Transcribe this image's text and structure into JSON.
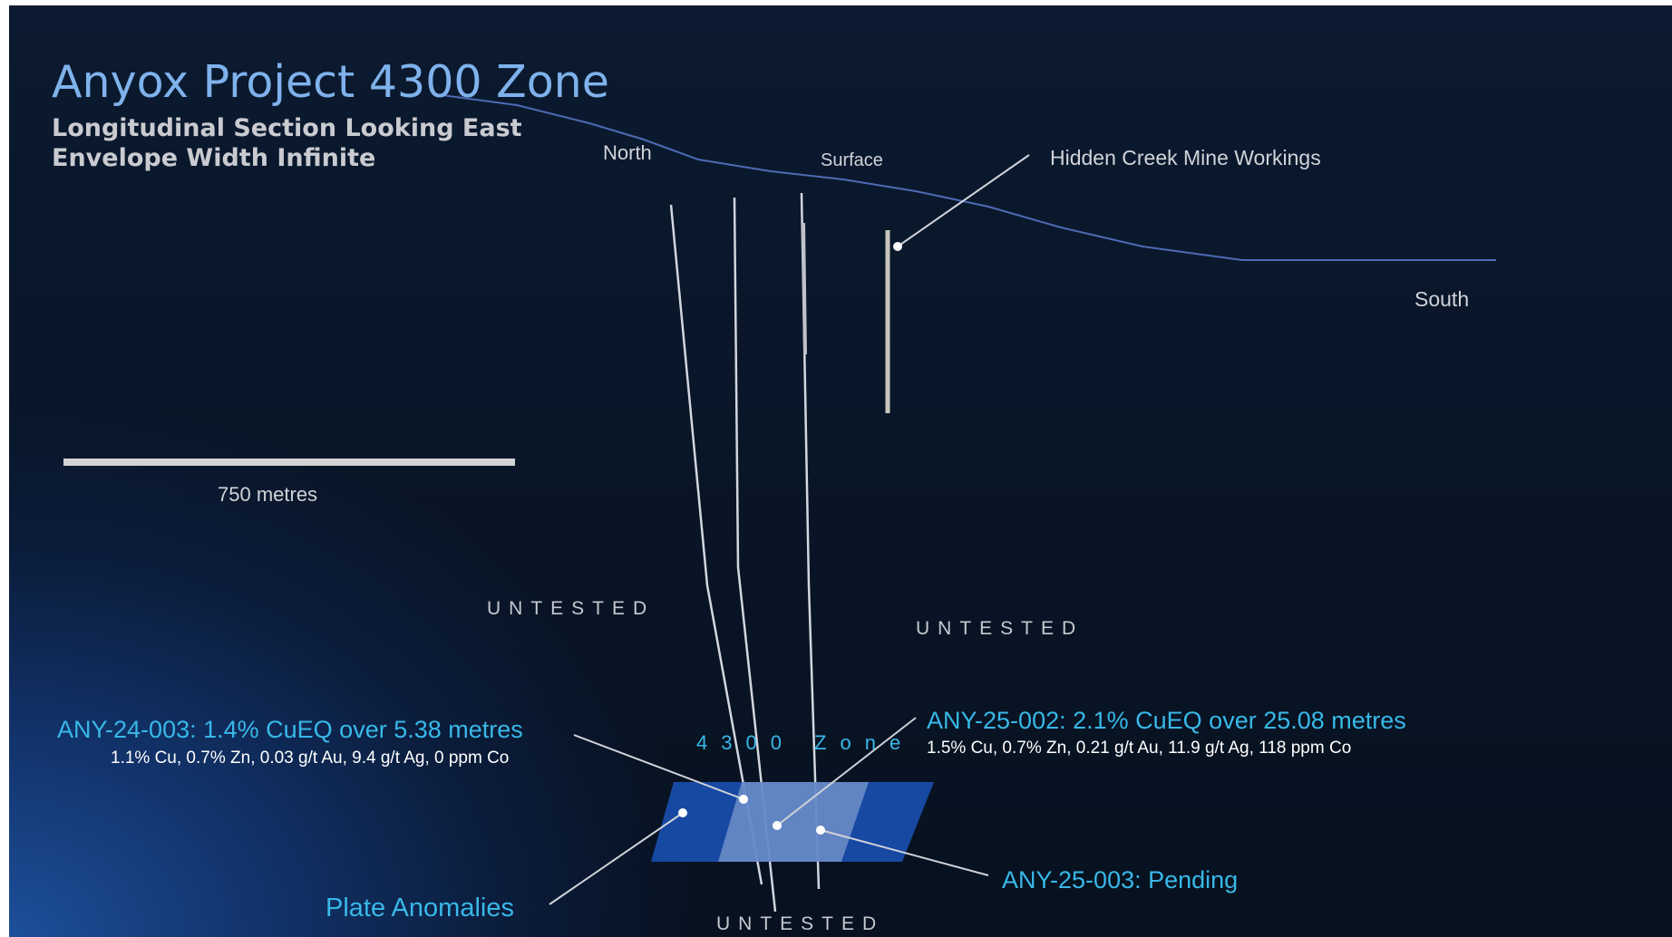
{
  "title": "Anyox Project 4300 Zone",
  "subtitle_1": "Longitudinal Section Looking East",
  "subtitle_2": "Envelope Width Infinite",
  "orientation": {
    "north": "North",
    "surface": "Surface",
    "south": "South"
  },
  "mine_workings_label": "Hidden Creek Mine Workings",
  "scale_bar_label": "750 metres",
  "untested_label": "UNTESTED",
  "zone_label": "4300 Zone",
  "drillholes": [
    {
      "title": "ANY-24-003: 1.4% CuEQ over 5.38 metres",
      "assay": "1.1% Cu, 0.7% Zn, 0.03 g/t Au, 9.4 g/t Ag, 0 ppm Co"
    },
    {
      "title": "ANY-25-002: 2.1% CuEQ  over 25.08 metres",
      "assay": "1.5% Cu, 0.7% Zn, 0.21 g/t Au, 11.9 g/t Ag, 118 ppm Co"
    },
    {
      "title": "ANY-25-003: Pending"
    }
  ],
  "plate_anomalies_label": "Plate Anomalies",
  "colors": {
    "title": "#7fb2ec",
    "accent_cyan": "#38b8e8",
    "surface_line": "#4d6bb5",
    "plate_fill": "#1a4fb0"
  }
}
